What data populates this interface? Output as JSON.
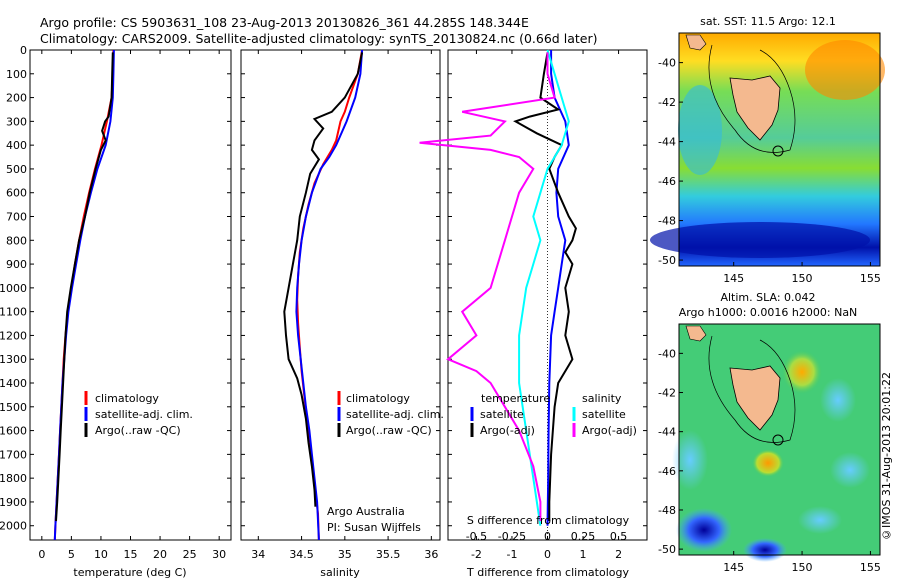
{
  "header": {
    "line1": "Argo profile: CS 5903631_108 23-Aug-2013 20130826_361 44.285S 148.344E",
    "line2": "Climatology: CARS2009. Satellite-adjusted climatology: synTS_20130824.nc (0.66d later)"
  },
  "side_label": "©IMOS 31-Aug-2013 20:01:22",
  "colors": {
    "climatology": "#ff0000",
    "satellite": "#0000ff",
    "argo": "#000000",
    "sat_sal": "#00ffff",
    "argo_sal": "#ff00ff"
  },
  "chart_data": [
    {
      "type": "line",
      "xlabel": "temperature (deg C)",
      "xlim": [
        -2,
        32
      ],
      "xticks": [
        0,
        5,
        10,
        15,
        20,
        25,
        30
      ],
      "ylim": [
        2060,
        0
      ],
      "yticks": [
        0,
        100,
        200,
        300,
        400,
        500,
        600,
        700,
        800,
        900,
        1000,
        1100,
        1200,
        1300,
        1400,
        1500,
        1600,
        1700,
        1800,
        1900,
        2000
      ],
      "legend": [
        "climatology",
        "satellite-adj. clim.",
        "Argo(..raw -QC)"
      ],
      "series": [
        {
          "name": "climatology",
          "color": "#ff0000",
          "points": [
            [
              12.1,
              0
            ],
            [
              12,
              100
            ],
            [
              11.8,
              200
            ],
            [
              11,
              300
            ],
            [
              10.1,
              400
            ],
            [
              9,
              500
            ],
            [
              8,
              600
            ],
            [
              7.1,
              700
            ],
            [
              6.3,
              800
            ],
            [
              5.6,
              900
            ],
            [
              5,
              1000
            ],
            [
              4.4,
              1100
            ],
            [
              4,
              1200
            ],
            [
              3.7,
              1300
            ],
            [
              3.5,
              1400
            ],
            [
              3.3,
              1500
            ],
            [
              3.1,
              1600
            ],
            [
              2.9,
              1700
            ],
            [
              2.7,
              1800
            ],
            [
              2.5,
              1900
            ],
            [
              2.3,
              2000
            ],
            [
              2.2,
              2060
            ]
          ]
        },
        {
          "name": "satellite-adj. clim.",
          "color": "#0000ff",
          "points": [
            [
              12.2,
              0
            ],
            [
              12.1,
              100
            ],
            [
              12,
              200
            ],
            [
              11.6,
              300
            ],
            [
              10.8,
              400
            ],
            [
              9.4,
              500
            ],
            [
              8.3,
              600
            ],
            [
              7.3,
              700
            ],
            [
              6.5,
              800
            ],
            [
              5.8,
              900
            ],
            [
              5.1,
              1000
            ],
            [
              4.5,
              1100
            ],
            [
              4.1,
              1200
            ],
            [
              3.8,
              1300
            ],
            [
              3.5,
              1400
            ],
            [
              3.3,
              1500
            ],
            [
              3.1,
              1600
            ],
            [
              2.9,
              1700
            ],
            [
              2.7,
              1800
            ],
            [
              2.5,
              1900
            ],
            [
              2.3,
              2000
            ],
            [
              2.2,
              2060
            ]
          ]
        },
        {
          "name": "Argo(..raw -QC)",
          "color": "#000000",
          "points": [
            [
              12,
              10
            ],
            [
              11.9,
              100
            ],
            [
              11.8,
              200
            ],
            [
              11.3,
              280
            ],
            [
              10.7,
              300
            ],
            [
              10.2,
              340
            ],
            [
              10.8,
              380
            ],
            [
              10,
              420
            ],
            [
              9.1,
              500
            ],
            [
              8.1,
              600
            ],
            [
              7.3,
              700
            ],
            [
              6.3,
              800
            ],
            [
              5.6,
              900
            ],
            [
              4.9,
              1000
            ],
            [
              4.3,
              1100
            ],
            [
              4,
              1200
            ],
            [
              3.8,
              1300
            ],
            [
              3.6,
              1400
            ],
            [
              3.4,
              1500
            ],
            [
              3.2,
              1600
            ],
            [
              3,
              1700
            ],
            [
              2.8,
              1800
            ],
            [
              2.6,
              1900
            ],
            [
              2.4,
              1980
            ]
          ]
        }
      ]
    },
    {
      "type": "line",
      "xlabel": "salinity",
      "xlim": [
        33.8,
        36.1
      ],
      "xticks": [
        34,
        34.5,
        35,
        35.5,
        36
      ],
      "ylim": [
        2060,
        0
      ],
      "legend": [
        "climatology",
        "satellite-adj. clim.",
        "Argo(..raw -QC)"
      ],
      "annotation": [
        "Argo Australia",
        "PI: Susan Wijffels"
      ],
      "series": [
        {
          "name": "climatology",
          "color": "#ff0000",
          "points": [
            [
              35.2,
              0
            ],
            [
              35.15,
              100
            ],
            [
              35.05,
              200
            ],
            [
              35,
              260
            ],
            [
              34.95,
              300
            ],
            [
              34.9,
              380
            ],
            [
              34.85,
              420
            ],
            [
              34.75,
              480
            ],
            [
              34.65,
              560
            ],
            [
              34.58,
              650
            ],
            [
              34.52,
              750
            ],
            [
              34.48,
              850
            ],
            [
              34.46,
              950
            ],
            [
              34.45,
              1050
            ],
            [
              34.46,
              1150
            ],
            [
              34.48,
              1250
            ],
            [
              34.5,
              1350
            ],
            [
              34.53,
              1450
            ],
            [
              34.56,
              1550
            ],
            [
              34.6,
              1650
            ],
            [
              34.63,
              1750
            ],
            [
              34.66,
              1850
            ],
            [
              34.69,
              1950
            ],
            [
              34.7,
              2060
            ]
          ]
        },
        {
          "name": "satellite-adj. clim.",
          "color": "#0000ff",
          "points": [
            [
              35.2,
              0
            ],
            [
              35.18,
              100
            ],
            [
              35.12,
              200
            ],
            [
              35.02,
              300
            ],
            [
              34.9,
              400
            ],
            [
              34.82,
              450
            ],
            [
              34.72,
              500
            ],
            [
              34.62,
              600
            ],
            [
              34.55,
              700
            ],
            [
              34.5,
              800
            ],
            [
              34.47,
              900
            ],
            [
              34.45,
              1000
            ],
            [
              34.44,
              1100
            ],
            [
              34.46,
              1200
            ],
            [
              34.49,
              1300
            ],
            [
              34.52,
              1400
            ],
            [
              34.55,
              1500
            ],
            [
              34.59,
              1600
            ],
            [
              34.62,
              1700
            ],
            [
              34.65,
              1800
            ],
            [
              34.68,
              1900
            ],
            [
              34.7,
              2060
            ]
          ]
        },
        {
          "name": "Argo(..raw -QC)",
          "color": "#000000",
          "points": [
            [
              35.2,
              10
            ],
            [
              35.15,
              100
            ],
            [
              35,
              200
            ],
            [
              34.85,
              260
            ],
            [
              34.65,
              290
            ],
            [
              34.75,
              330
            ],
            [
              34.65,
              380
            ],
            [
              34.62,
              420
            ],
            [
              34.7,
              460
            ],
            [
              34.6,
              520
            ],
            [
              34.55,
              600
            ],
            [
              34.48,
              700
            ],
            [
              34.45,
              800
            ],
            [
              34.4,
              900
            ],
            [
              34.35,
              1000
            ],
            [
              34.3,
              1100
            ],
            [
              34.32,
              1200
            ],
            [
              34.35,
              1300
            ],
            [
              34.45,
              1380
            ],
            [
              34.5,
              1450
            ],
            [
              34.55,
              1550
            ],
            [
              34.58,
              1650
            ],
            [
              34.62,
              1750
            ],
            [
              34.65,
              1850
            ],
            [
              34.66,
              1920
            ]
          ]
        }
      ]
    },
    {
      "type": "line",
      "xlabel": "T difference from climatology",
      "xlabel_top": "S difference from climatology",
      "xlim": [
        -2.8,
        2.8
      ],
      "xticks": [
        -2,
        -1,
        0,
        1,
        2
      ],
      "xticks_top": [
        -0.5,
        -0.25,
        0,
        0.25,
        0.5
      ],
      "ylim": [
        2060,
        0
      ],
      "legend": [
        "temperature",
        "satellite",
        "Argo(-adj)",
        "salinity",
        "satellite",
        "Argo(-adj)"
      ],
      "series": [
        {
          "name": "temperature satellite",
          "color": "#0000ff",
          "points": [
            [
              0.1,
              0
            ],
            [
              0.1,
              100
            ],
            [
              0.2,
              200
            ],
            [
              0.5,
              300
            ],
            [
              0.6,
              400
            ],
            [
              0.3,
              500
            ],
            [
              0.25,
              600
            ],
            [
              0.3,
              700
            ],
            [
              0.5,
              800
            ],
            [
              0.4,
              900
            ],
            [
              0.3,
              1000
            ],
            [
              0.2,
              1100
            ],
            [
              0.1,
              1200
            ],
            [
              0.05,
              1400
            ],
            [
              0.03,
              1600
            ],
            [
              0.02,
              1800
            ],
            [
              0,
              2000
            ]
          ]
        },
        {
          "name": "temperature Argo(-adj)",
          "color": "#000000",
          "points": [
            [
              0,
              10
            ],
            [
              -0.1,
              100
            ],
            [
              -0.2,
              200
            ],
            [
              0.3,
              250
            ],
            [
              -0.5,
              280
            ],
            [
              -0.9,
              300
            ],
            [
              -0.3,
              350
            ],
            [
              0.4,
              400
            ],
            [
              0.2,
              450
            ],
            [
              0.05,
              500
            ],
            [
              0.3,
              600
            ],
            [
              0.6,
              700
            ],
            [
              0.8,
              750
            ],
            [
              0.7,
              800
            ],
            [
              0.5,
              850
            ],
            [
              0.7,
              900
            ],
            [
              0.5,
              1000
            ],
            [
              0.6,
              1100
            ],
            [
              0.5,
              1200
            ],
            [
              0.7,
              1300
            ],
            [
              0.3,
              1400
            ],
            [
              0.2,
              1500
            ],
            [
              0.1,
              1700
            ],
            [
              0.05,
              1900
            ],
            [
              0.05,
              1980
            ]
          ]
        },
        {
          "name": "salinity satellite",
          "color": "#00ffff",
          "points": [
            [
              0,
              0
            ],
            [
              0.05,
              100
            ],
            [
              0.1,
              200
            ],
            [
              0.15,
              300
            ],
            [
              0.1,
              400
            ],
            [
              0,
              500
            ],
            [
              -0.05,
              600
            ],
            [
              -0.1,
              700
            ],
            [
              -0.05,
              800
            ],
            [
              -0.1,
              900
            ],
            [
              -0.15,
              1000
            ],
            [
              -0.2,
              1200
            ],
            [
              -0.2,
              1400
            ],
            [
              -0.15,
              1600
            ],
            [
              -0.1,
              1800
            ],
            [
              -0.05,
              2000
            ]
          ]
        },
        {
          "name": "salinity Argo(-adj)",
          "color": "#ff00ff",
          "points": [
            [
              0,
              10
            ],
            [
              0,
              100
            ],
            [
              0.05,
              200
            ],
            [
              -0.6,
              260
            ],
            [
              -0.3,
              300
            ],
            [
              -0.4,
              360
            ],
            [
              -0.9,
              390
            ],
            [
              -0.4,
              420
            ],
            [
              -0.2,
              450
            ],
            [
              -0.1,
              500
            ],
            [
              -0.2,
              600
            ],
            [
              -0.3,
              800
            ],
            [
              -0.4,
              1000
            ],
            [
              -0.6,
              1100
            ],
            [
              -0.5,
              1200
            ],
            [
              -0.7,
              1300
            ],
            [
              -0.5,
              1350
            ],
            [
              -0.4,
              1400
            ],
            [
              -0.3,
              1500
            ],
            [
              -0.2,
              1600
            ],
            [
              -0.1,
              1750
            ],
            [
              -0.05,
              1900
            ],
            [
              -0.05,
              1980
            ]
          ]
        }
      ]
    },
    {
      "type": "heatmap",
      "title": "sat. SST: 11.5  Argo: 12.1",
      "xticks": [
        145,
        150,
        155
      ],
      "yticks": [
        -40,
        -42,
        -44,
        -46,
        -48,
        -50
      ]
    },
    {
      "type": "heatmap",
      "title_line1": "Altim. SLA: 0.042",
      "title_line2": "Argo h1000: 0.0016 h2000: NaN",
      "xticks": [
        145,
        150,
        155
      ],
      "yticks": [
        -40,
        -42,
        -44,
        -46,
        -48,
        -50
      ]
    }
  ]
}
